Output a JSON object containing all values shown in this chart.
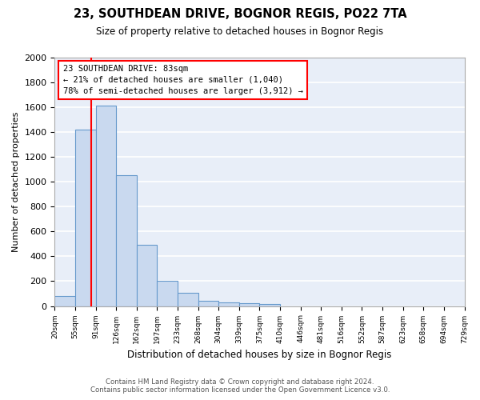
{
  "title": "23, SOUTHDEAN DRIVE, BOGNOR REGIS, PO22 7TA",
  "subtitle": "Size of property relative to detached houses in Bognor Regis",
  "xlabel": "Distribution of detached houses by size in Bognor Regis",
  "ylabel": "Number of detached properties",
  "bar_color": "#c9d9ef",
  "bar_edge_color": "#6699cc",
  "bg_color": "#e8eef8",
  "grid_color": "#ffffff",
  "bin_labels": [
    "20sqm",
    "55sqm",
    "91sqm",
    "126sqm",
    "162sqm",
    "197sqm",
    "233sqm",
    "268sqm",
    "304sqm",
    "339sqm",
    "375sqm",
    "410sqm",
    "446sqm",
    "481sqm",
    "516sqm",
    "552sqm",
    "587sqm",
    "623sqm",
    "658sqm",
    "694sqm",
    "729sqm"
  ],
  "bar_values": [
    80,
    1420,
    1610,
    1050,
    490,
    200,
    105,
    40,
    27,
    20,
    15,
    0,
    0,
    0,
    0,
    0,
    0,
    0,
    0,
    0
  ],
  "ylim": [
    0,
    2000
  ],
  "yticks": [
    0,
    200,
    400,
    600,
    800,
    1000,
    1200,
    1400,
    1600,
    1800,
    2000
  ],
  "red_line_x": 1.8,
  "annotation_title": "23 SOUTHDEAN DRIVE: 83sqm",
  "annotation_line1": "← 21% of detached houses are smaller (1,040)",
  "annotation_line2": "78% of semi-detached houses are larger (3,912) →",
  "footer_line1": "Contains HM Land Registry data © Crown copyright and database right 2024.",
  "footer_line2": "Contains public sector information licensed under the Open Government Licence v3.0."
}
